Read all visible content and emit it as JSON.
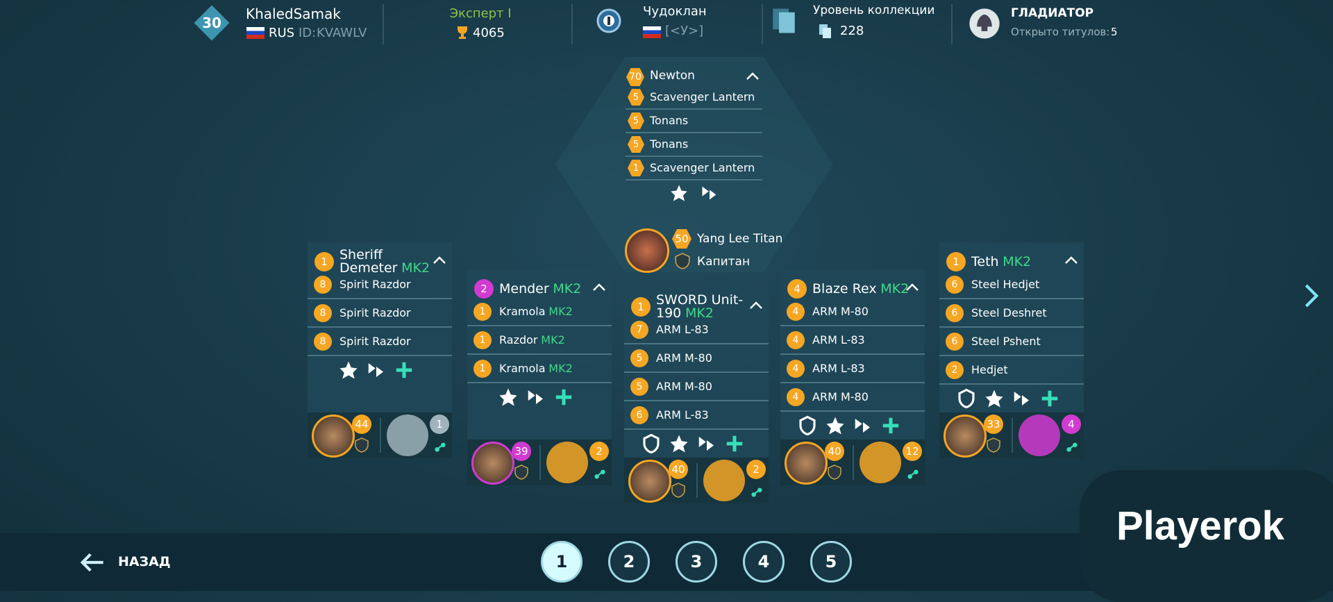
{
  "header": {
    "player": {
      "level": "30",
      "name": "KhaledSamak",
      "country": "RUS",
      "id_label": "ID:",
      "id": "KVAWLV"
    },
    "league": {
      "name": "Эксперт I",
      "trophies": "4065"
    },
    "clan": {
      "name": "Чудоклан",
      "tag": "[<У>]"
    },
    "collection": {
      "label": "Уровень коллекции",
      "value": "228"
    },
    "title": {
      "name": "ГЛАДИАТОР",
      "opened_label": "Открыто титулов:",
      "opened": "5"
    }
  },
  "titan": {
    "level": "70",
    "name": "Newton",
    "weapons": [
      {
        "level": "5",
        "name": "Scavenger Lantern"
      },
      {
        "level": "5",
        "name": "Tonans"
      },
      {
        "level": "5",
        "name": "Tonans"
      },
      {
        "level": "1",
        "name": "Scavenger Lantern"
      }
    ],
    "pilot": {
      "level": "50",
      "name": "Yang Lee Titan",
      "rank": "Капитан"
    }
  },
  "robots": [
    {
      "level": "1",
      "name": "Sheriff Demeter",
      "mk": "MK2",
      "weapons": [
        {
          "level": "8",
          "name": "Spirit Razdor"
        },
        {
          "level": "8",
          "name": "Spirit Razdor"
        },
        {
          "level": "8",
          "name": "Spirit Razdor"
        }
      ],
      "pilot": {
        "level": "44",
        "color": "#f5a623"
      },
      "drone": {
        "level": "1",
        "color": "#9fb3bb"
      }
    },
    {
      "level": "2",
      "color": "#d13bd1",
      "name": "Mender",
      "mk": "MK2",
      "weapons": [
        {
          "level": "1",
          "name": "Kramola",
          "mk": "MK2"
        },
        {
          "level": "1",
          "name": "Razdor",
          "mk": "MK2"
        },
        {
          "level": "1",
          "name": "Kramola",
          "mk": "MK2"
        }
      ],
      "pilot": {
        "level": "39",
        "color": "#d13bd1"
      },
      "drone": {
        "level": "2",
        "color": "#f5a623"
      }
    },
    {
      "level": "1",
      "name": "SWORD Unit-190",
      "mk": "MK2",
      "weapons": [
        {
          "level": "7",
          "name": "ARM L-83"
        },
        {
          "level": "5",
          "name": "ARM M-80"
        },
        {
          "level": "5",
          "name": "ARM M-80"
        },
        {
          "level": "6",
          "name": "ARM L-83"
        }
      ],
      "pilot": {
        "level": "40",
        "color": "#f5a623"
      },
      "drone": {
        "level": "2",
        "color": "#f5a623"
      }
    },
    {
      "level": "4",
      "name": "Blaze Rex",
      "mk": "MK2",
      "weapons": [
        {
          "level": "4",
          "name": "ARM M-80"
        },
        {
          "level": "4",
          "name": "ARM L-83"
        },
        {
          "level": "4",
          "name": "ARM L-83"
        },
        {
          "level": "4",
          "name": "ARM M-80"
        }
      ],
      "pilot": {
        "level": "40",
        "color": "#f5a623"
      },
      "drone": {
        "level": "12",
        "color": "#f5a623"
      }
    },
    {
      "level": "1",
      "name": "Teth",
      "mk": "MK2",
      "weapons": [
        {
          "level": "6",
          "name": "Steel Hedjet"
        },
        {
          "level": "6",
          "name": "Steel Deshret"
        },
        {
          "level": "6",
          "name": "Steel Pshent"
        },
        {
          "level": "2",
          "name": "Hedjet"
        }
      ],
      "pilot": {
        "level": "33",
        "color": "#f5a623"
      },
      "drone": {
        "level": "4",
        "color": "#d13bd1"
      }
    }
  ],
  "footer": {
    "back": "НАЗАД",
    "pages": [
      "1",
      "2",
      "3",
      "4",
      "5"
    ],
    "watermark": "Playerok"
  }
}
